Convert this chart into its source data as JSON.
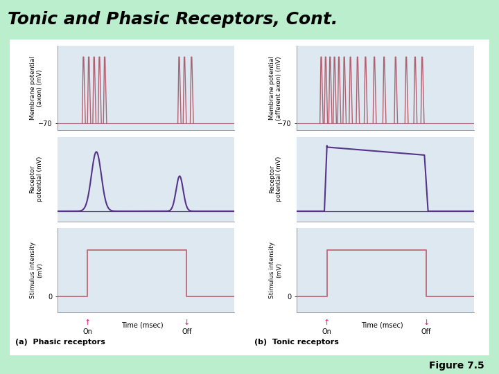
{
  "title": "Tonic and Phasic Receptors, Cont.",
  "title_bg": "#44bb44",
  "title_color": "#000000",
  "title_fontsize": 18,
  "figure_bg": "#bbeecc",
  "plot_bg": "#dde8f0",
  "spike_color": "#b06070",
  "receptor_color": "#553388",
  "stimulus_color": "#c07080",
  "label_color": "#000000",
  "arrow_color": "#ee1177",
  "figure_label_a": "(a)  Phasic receptors",
  "figure_label_b": "(b)  Tonic receptors",
  "figure_num": "Figure 7.5",
  "ylabel_membrane_a": "Membrane potential\n(axon) (mV)",
  "ylabel_membrane_b": "Membrane potential\n(afferent axon) (mV)",
  "ylabel_receptor": "Receptor\npotential (mV)",
  "ylabel_stimulus": "Stimulus intensity\n(mV)",
  "xlabel": "Time (msec)",
  "tick_neg70": "−70",
  "tick_0": "0"
}
